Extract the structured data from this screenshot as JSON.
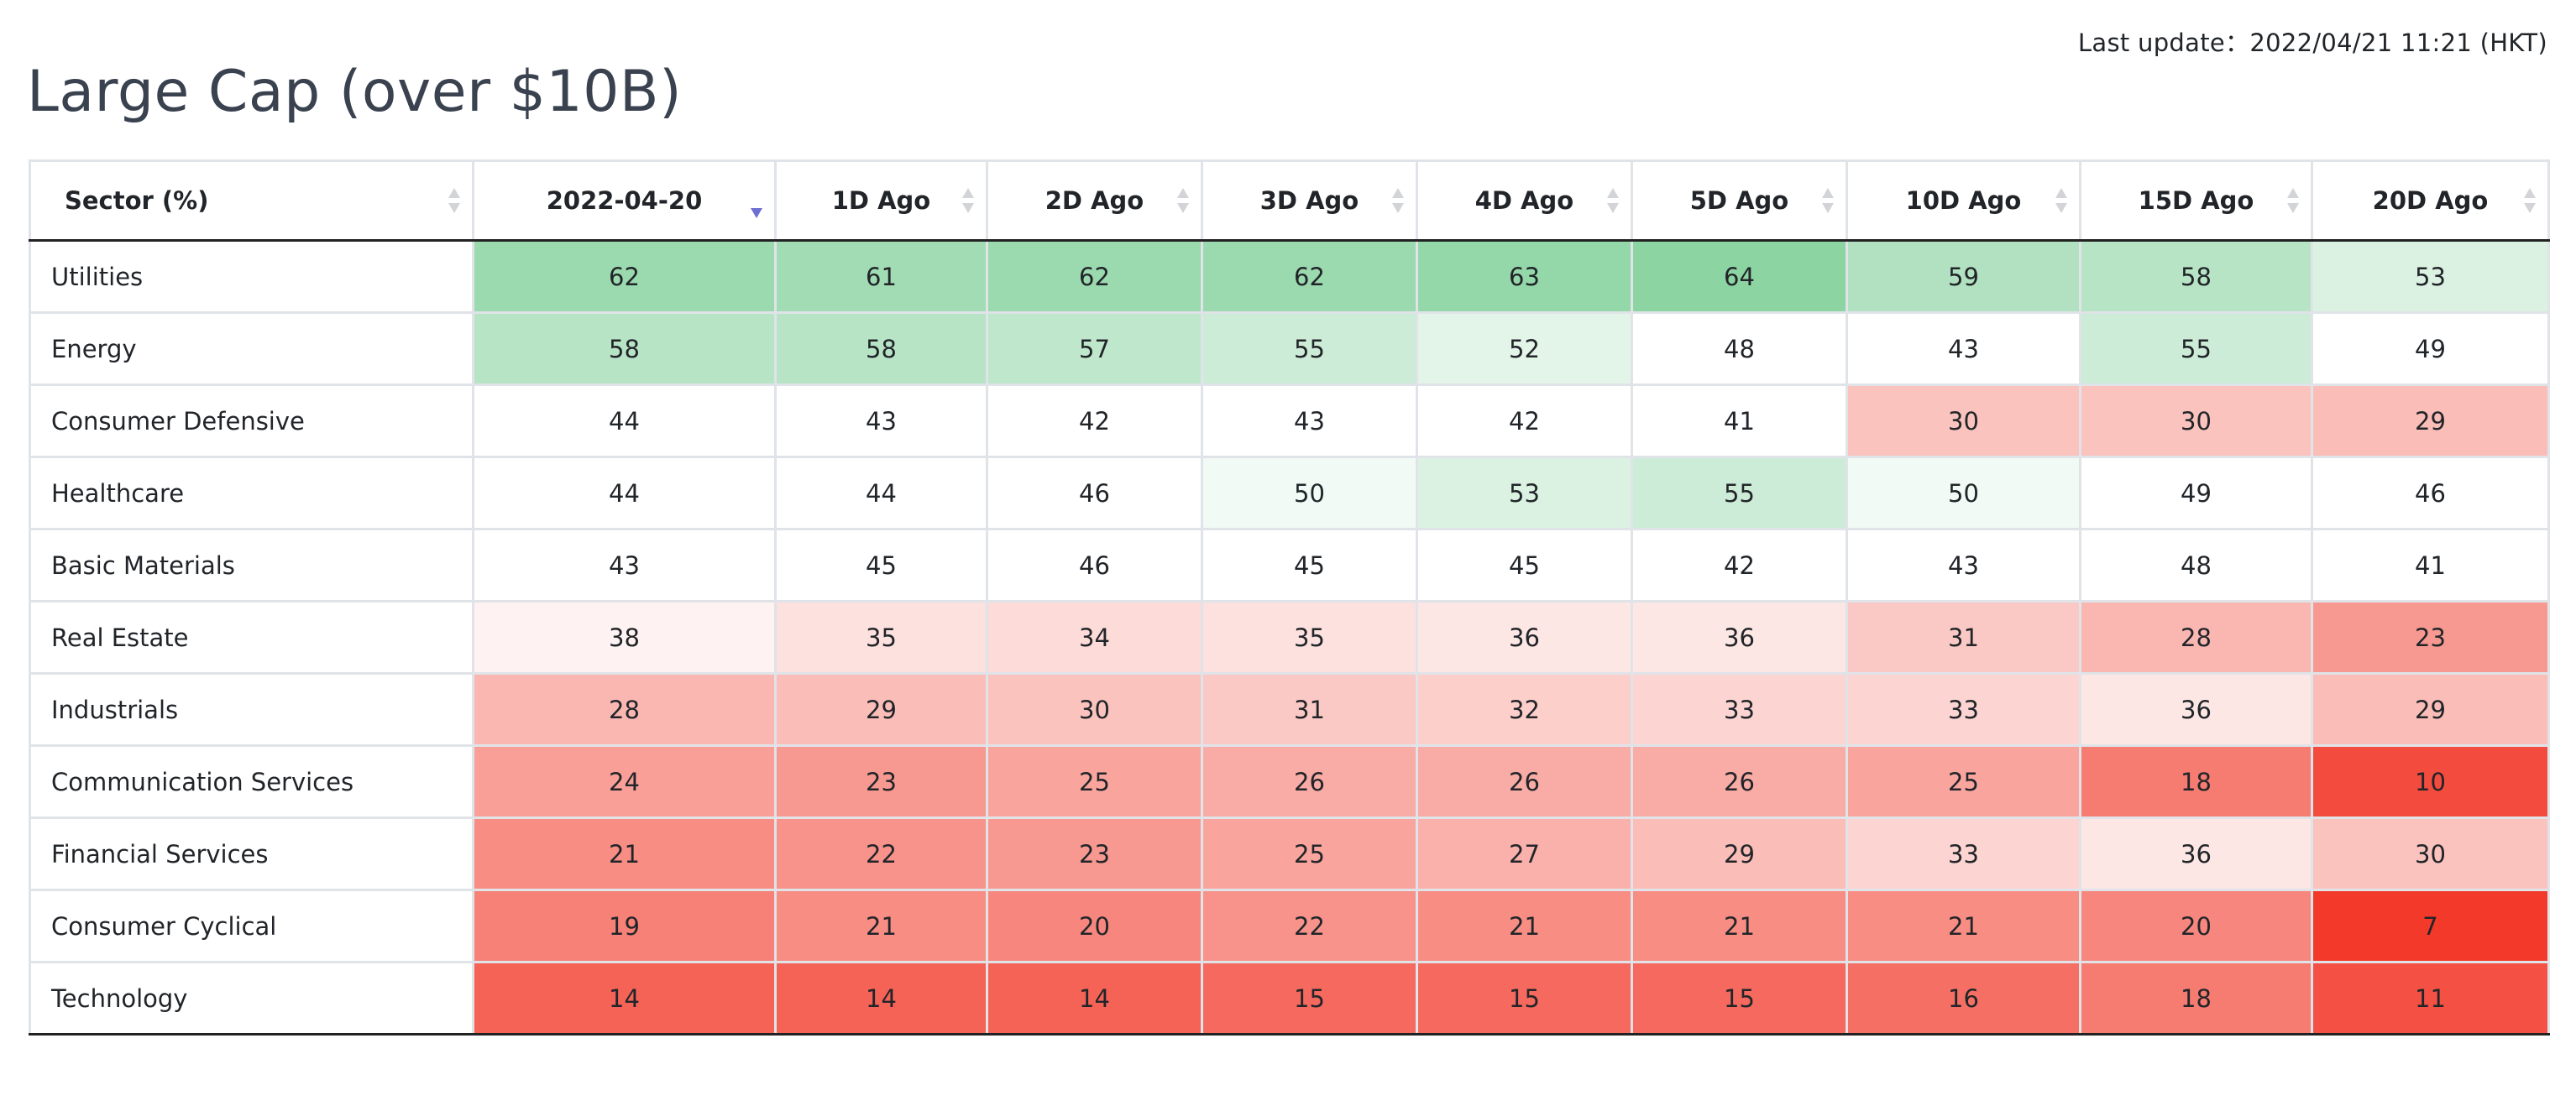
{
  "last_update": "Last update：2022/04/21 11:21 (HKT)",
  "title": "Large Cap (over $10B)",
  "table": {
    "headers": [
      "Sector (%)",
      "2022-04-20",
      "1D Ago",
      "2D Ago",
      "3D Ago",
      "4D Ago",
      "5D Ago",
      "10D Ago",
      "15D Ago",
      "20D Ago"
    ],
    "sorted_column": 1,
    "sort_direction": "descending",
    "rows": [
      {
        "sector": "Utilities",
        "values": [
          62,
          61,
          62,
          62,
          63,
          64,
          59,
          58,
          53
        ]
      },
      {
        "sector": "Energy",
        "values": [
          58,
          58,
          57,
          55,
          52,
          48,
          43,
          55,
          49
        ]
      },
      {
        "sector": "Consumer Defensive",
        "values": [
          44,
          43,
          42,
          43,
          42,
          41,
          30,
          30,
          29
        ]
      },
      {
        "sector": "Healthcare",
        "values": [
          44,
          44,
          46,
          50,
          53,
          55,
          50,
          49,
          46
        ]
      },
      {
        "sector": "Basic Materials",
        "values": [
          43,
          45,
          46,
          45,
          45,
          42,
          43,
          48,
          41
        ]
      },
      {
        "sector": "Real Estate",
        "values": [
          38,
          35,
          34,
          35,
          36,
          36,
          31,
          28,
          23
        ]
      },
      {
        "sector": "Industrials",
        "values": [
          28,
          29,
          30,
          31,
          32,
          33,
          33,
          36,
          29
        ]
      },
      {
        "sector": "Communication Services",
        "values": [
          24,
          23,
          25,
          26,
          26,
          26,
          25,
          18,
          10
        ]
      },
      {
        "sector": "Financial Services",
        "values": [
          21,
          22,
          23,
          25,
          27,
          29,
          33,
          36,
          30
        ]
      },
      {
        "sector": "Consumer Cyclical",
        "values": [
          19,
          21,
          20,
          22,
          21,
          21,
          21,
          20,
          7
        ]
      },
      {
        "sector": "Technology",
        "values": [
          14,
          14,
          14,
          15,
          15,
          15,
          16,
          18,
          11
        ]
      }
    ]
  },
  "colors": {
    "high": "#8dd4a3",
    "neutral": "#ffffff",
    "low": "#f2392a"
  }
}
